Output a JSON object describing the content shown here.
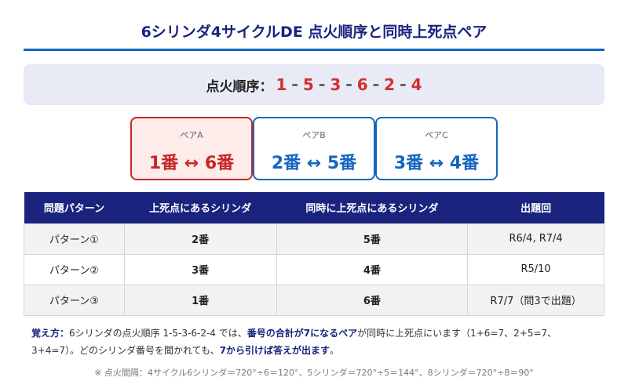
{
  "title": "6シリンダ4サイクルDE 点火順序と同時上死点ペア",
  "firing_order": {
    "label": "点火順序：",
    "sequence": [
      "1",
      "5",
      "3",
      "6",
      "2",
      "4"
    ],
    "separator": "–"
  },
  "pairs": [
    {
      "label": "ペアA",
      "value": "1番 ↔ 6番",
      "highlight": true
    },
    {
      "label": "ペアB",
      "value": "2番 ↔ 5番",
      "highlight": false
    },
    {
      "label": "ペアC",
      "value": "3番 ↔ 4番",
      "highlight": false
    }
  ],
  "table": {
    "headers": [
      "問題パターン",
      "上死点にあるシリンダ",
      "同時に上死点にあるシリンダ",
      "出題回"
    ],
    "rows": [
      {
        "pattern": "パターン①",
        "tdc": "2番",
        "same": "5番",
        "exam": "R6/4, R7/4"
      },
      {
        "pattern": "パターン②",
        "tdc": "3番",
        "same": "4番",
        "exam": "R5/10"
      },
      {
        "pattern": "パターン③",
        "tdc": "1番",
        "same": "6番",
        "exam": "R7/7（問3で出題）"
      }
    ]
  },
  "note": {
    "label": "覚え方：",
    "text1": "6シリンダの点火順序 1-5-3-6-2-4 では、",
    "em1": "番号の合計が7になるペア",
    "text2": "が同時に上死点にいます（1+6=7、2+5=7、3+4=7）。どのシリンダ番号を聞かれても、",
    "em2": "7から引けば答えが出ます",
    "text3": "。"
  },
  "footnote": "※ 点火間隔：4サイクル6シリンダ＝720°÷6＝120°、5シリンダ＝720°÷5＝144°、8シリンダ＝720°÷8＝90°"
}
